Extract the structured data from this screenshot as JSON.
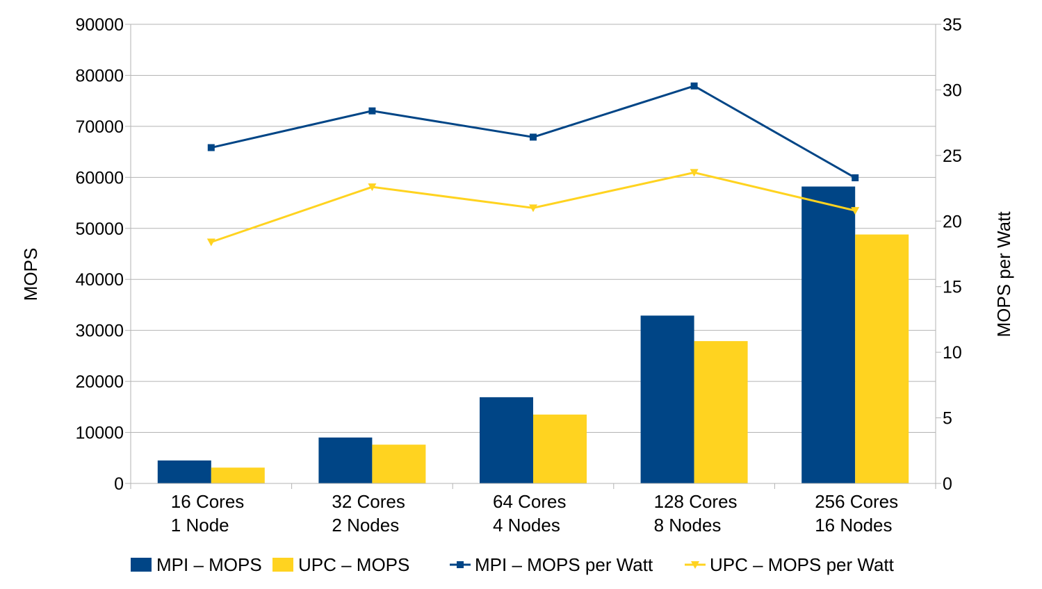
{
  "chart_data": {
    "type": "bar",
    "title": "",
    "xlabel": "",
    "ylabel": "MOPS",
    "y2label": "MOPS per Watt",
    "categories": [
      [
        "16 Cores",
        "1 Node"
      ],
      [
        "32 Cores",
        "2 Nodes"
      ],
      [
        "64 Cores",
        "4 Nodes"
      ],
      [
        "128 Cores",
        "8 Nodes"
      ],
      [
        "256 Cores",
        "16 Nodes"
      ]
    ],
    "ylim": [
      0,
      90000
    ],
    "y_ticks": [
      0,
      10000,
      20000,
      30000,
      40000,
      50000,
      60000,
      70000,
      80000,
      90000
    ],
    "y2lim": [
      0,
      35
    ],
    "y2_ticks": [
      0,
      5,
      10,
      15,
      20,
      25,
      30,
      35
    ],
    "grid": true,
    "legend_position": "bottom",
    "bar_series": [
      {
        "name": "MPI – MOPS",
        "color": "#004586",
        "values": [
          4500,
          9000,
          16900,
          32900,
          58200
        ]
      },
      {
        "name": "UPC – MOPS",
        "color": "#ffd320",
        "values": [
          3100,
          7600,
          13500,
          27900,
          48800
        ]
      }
    ],
    "line_series": [
      {
        "name": "MPI – MOPS per Watt",
        "color": "#004586",
        "marker": "square",
        "axis": "right",
        "values": [
          25.6,
          28.4,
          26.4,
          30.3,
          23.3
        ]
      },
      {
        "name": "UPC – MOPS per Watt",
        "color": "#ffd320",
        "marker": "triangle-down",
        "axis": "right",
        "values": [
          18.4,
          22.6,
          21.0,
          23.7,
          20.8
        ]
      }
    ]
  }
}
